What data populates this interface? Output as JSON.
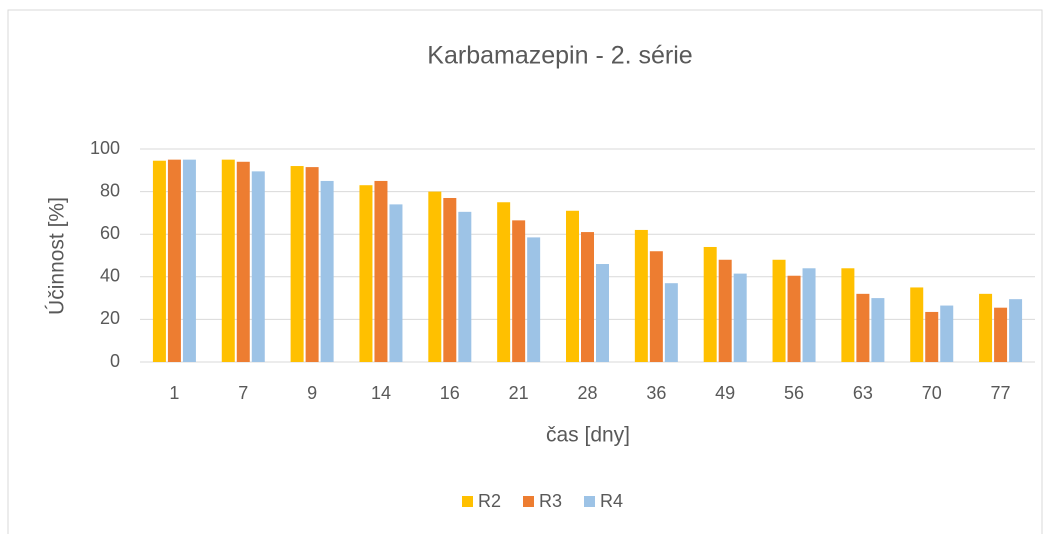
{
  "chart_data": {
    "type": "bar",
    "title": "Karbamazepin - 2. série",
    "x_label": "čas [dny]",
    "y_label": "Účinnost [%]",
    "categories": [
      "1",
      "7",
      "9",
      "14",
      "16",
      "21",
      "28",
      "36",
      "49",
      "56",
      "63",
      "70",
      "77"
    ],
    "series": [
      {
        "name": "R2",
        "color": "#ffc000",
        "values": [
          94.5,
          95,
          92,
          83,
          80,
          75,
          71,
          62,
          54,
          48,
          44,
          35,
          32
        ]
      },
      {
        "name": "R3",
        "color": "#ed7d31",
        "values": [
          95,
          94,
          91.5,
          85,
          77,
          66.5,
          61,
          52,
          48,
          40.5,
          32,
          23.5,
          25.5
        ]
      },
      {
        "name": "R4",
        "color": "#9dc3e6",
        "values": [
          95,
          89.5,
          85,
          74,
          70.5,
          58.5,
          46,
          37,
          41.5,
          44,
          30,
          26.5,
          29.5
        ]
      }
    ],
    "ylim": [
      0,
      100
    ],
    "yticks": [
      0,
      20,
      40,
      60,
      80,
      100
    ],
    "grid": true,
    "legend": "bottom"
  }
}
